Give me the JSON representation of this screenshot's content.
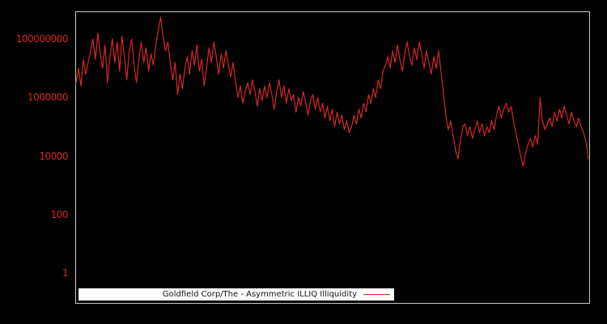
{
  "legend": {
    "label": "Goldfield Corp/The - Asymmetric ILLIQ Illiquidity"
  },
  "colors": {
    "background": "#000000",
    "line": "#d62728",
    "tick_label": "#d62728",
    "plot_border": "#c8c8c8",
    "legend_background": "#ffffff"
  },
  "chart_data": {
    "type": "line",
    "title": "",
    "xlabel": "",
    "ylabel": "",
    "legend_position": "lower center",
    "grid": false,
    "y_scale": "log",
    "ylim_log10": [
      -1.05,
      8.95
    ],
    "x_tick_labels": [],
    "y_ticks": [
      {
        "label": "100000000",
        "log10": 8
      },
      {
        "label": "1000000",
        "log10": 6
      },
      {
        "label": "10000",
        "log10": 4
      },
      {
        "label": "100",
        "log10": 2
      },
      {
        "label": "1",
        "log10": 0
      }
    ],
    "series": [
      {
        "name": "Goldfield Corp/The - Asymmetric ILLIQ Illiquidity",
        "color": "#d62728",
        "log10_values": [
          6.5,
          7.0,
          6.4,
          7.3,
          6.8,
          7.2,
          7.6,
          8.0,
          7.3,
          8.2,
          7.5,
          7.0,
          7.8,
          6.5,
          7.4,
          8.0,
          7.2,
          7.9,
          6.9,
          8.1,
          7.4,
          6.6,
          7.6,
          8.0,
          7.1,
          6.5,
          7.3,
          7.9,
          7.2,
          7.7,
          6.9,
          7.5,
          7.1,
          7.8,
          8.3,
          8.75,
          8.1,
          7.6,
          7.9,
          7.2,
          6.6,
          7.2,
          6.1,
          6.8,
          6.3,
          7.0,
          7.4,
          6.8,
          7.6,
          7.1,
          7.8,
          6.9,
          7.3,
          6.4,
          7.0,
          7.7,
          7.2,
          7.9,
          7.4,
          6.8,
          7.5,
          7.0,
          7.6,
          7.1,
          6.7,
          7.2,
          6.5,
          6.0,
          6.4,
          5.8,
          6.2,
          6.5,
          6.1,
          6.6,
          6.2,
          5.7,
          6.3,
          5.9,
          6.4,
          6.0,
          6.5,
          6.1,
          5.6,
          6.2,
          6.6,
          6.0,
          6.4,
          5.8,
          6.3,
          5.9,
          6.1,
          5.5,
          6.0,
          5.7,
          6.2,
          5.8,
          5.4,
          5.9,
          6.1,
          5.6,
          6.0,
          5.5,
          5.8,
          5.3,
          5.7,
          5.2,
          5.6,
          5.0,
          5.5,
          5.1,
          5.4,
          4.9,
          5.2,
          4.8,
          5.0,
          5.4,
          5.1,
          5.6,
          5.3,
          5.8,
          5.5,
          6.1,
          5.8,
          6.3,
          6.0,
          6.6,
          6.3,
          6.9,
          7.1,
          7.4,
          7.0,
          7.6,
          7.2,
          7.8,
          7.3,
          6.9,
          7.5,
          7.9,
          7.4,
          7.1,
          7.7,
          7.3,
          7.9,
          7.5,
          7.0,
          7.6,
          7.2,
          6.8,
          7.4,
          7.0,
          7.6,
          6.9,
          6.2,
          5.4,
          4.9,
          5.2,
          4.7,
          4.2,
          3.9,
          4.5,
          5.0,
          5.1,
          4.7,
          5.0,
          4.6,
          4.9,
          5.2,
          4.8,
          5.1,
          4.7,
          5.0,
          4.8,
          5.2,
          4.9,
          5.4,
          5.7,
          5.3,
          5.6,
          5.8,
          5.5,
          5.7,
          5.2,
          4.8,
          4.4,
          4.0,
          3.65,
          4.1,
          4.4,
          4.6,
          4.3,
          4.7,
          4.4,
          6.0,
          5.2,
          4.9,
          5.1,
          5.3,
          5.0,
          5.5,
          5.2,
          5.6,
          5.3,
          5.7,
          5.4,
          5.1,
          5.5,
          5.2,
          5.0,
          5.3,
          5.0,
          4.8,
          4.5,
          3.9
        ]
      }
    ]
  }
}
